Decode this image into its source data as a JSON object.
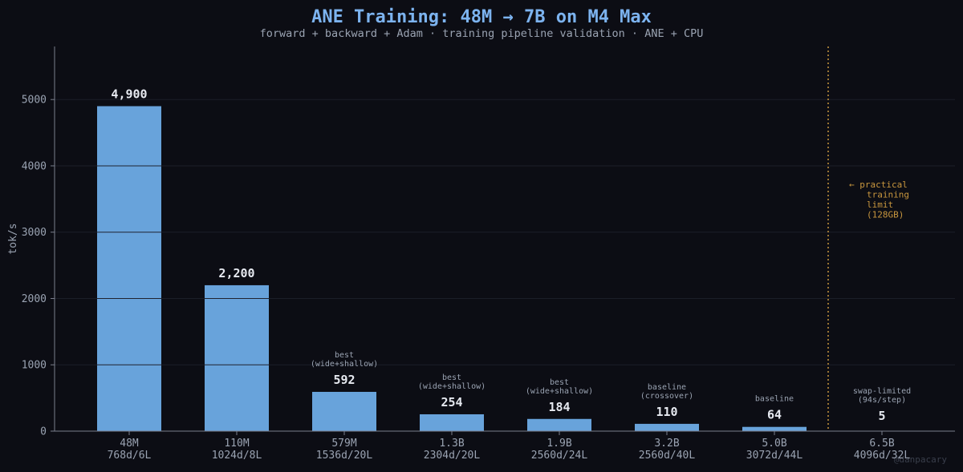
{
  "chart_data": {
    "type": "bar",
    "title": "ANE Training: 48M → 7B on M4 Max",
    "subtitle": "forward + backward + Adam  ·  training pipeline validation  ·  ANE + CPU",
    "ylabel": "tok/s",
    "xlabel": "",
    "ylim": [
      0,
      5800
    ],
    "yticks": [
      0,
      1000,
      2000,
      3000,
      4000,
      5000
    ],
    "grid": true,
    "categories": [
      [
        "48M",
        "768d/6L"
      ],
      [
        "110M",
        "1024d/8L"
      ],
      [
        "579M",
        "1536d/20L"
      ],
      [
        "1.3B",
        "2304d/20L"
      ],
      [
        "1.9B",
        "2560d/24L"
      ],
      [
        "3.2B",
        "2560d/40L"
      ],
      [
        "5.0B",
        "3072d/44L"
      ],
      [
        "6.5B",
        "4096d/32L"
      ]
    ],
    "values": [
      4900,
      2200,
      592,
      254,
      184,
      110,
      64,
      5
    ],
    "value_labels": [
      "4,900",
      "2,200",
      "592",
      "254",
      "184",
      "110",
      "64",
      "5"
    ],
    "annotations": [
      [],
      [],
      [
        "best",
        "(wide+shallow)"
      ],
      [
        "best",
        "(wide+shallow)"
      ],
      [
        "best",
        "(wide+shallow)"
      ],
      [
        "baseline",
        "(crossover)"
      ],
      [
        "baseline"
      ],
      [
        "swap-limited",
        "(94s/step)"
      ]
    ],
    "limit_after_index": 6,
    "limit_label": [
      "← practical",
      "training",
      "limit",
      "(128GB)"
    ],
    "colors": {
      "background": "#0c0d14",
      "bar": "#68a3db",
      "title": "#7cb3ef",
      "limit": "#c8963e",
      "axis": "#7a7f8c",
      "grid": "#1b1e28"
    }
  },
  "watermark": "@danpacary"
}
